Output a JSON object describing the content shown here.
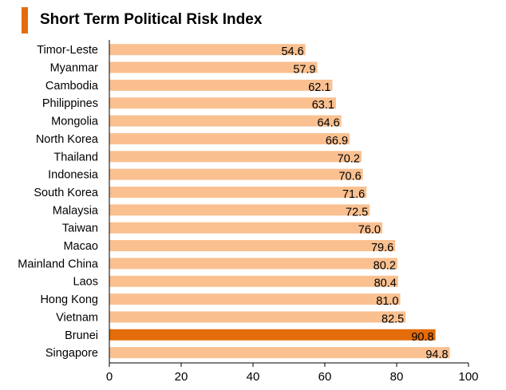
{
  "chart_data": {
    "type": "bar",
    "orientation": "horizontal",
    "title": "Short Term Political Risk Index",
    "categories": [
      "Timor-Leste",
      "Myanmar",
      "Cambodia",
      "Philippines",
      "Mongolia",
      "North Korea",
      "Thailand",
      "Indonesia",
      "South Korea",
      "Malaysia",
      "Taiwan",
      "Macao",
      "Mainland China",
      "Laos",
      "Hong Kong",
      "Vietnam",
      "Brunei",
      "Singapore"
    ],
    "values": [
      54.6,
      57.9,
      62.1,
      63.1,
      64.6,
      66.9,
      70.2,
      70.6,
      71.6,
      72.5,
      76.0,
      79.6,
      80.2,
      80.4,
      81.0,
      82.5,
      90.8,
      94.8
    ],
    "value_labels": [
      "54.6",
      "57.9",
      "62.1",
      "63.1",
      "64.6",
      "66.9",
      "70.2",
      "70.6",
      "71.6",
      "72.5",
      "76.0",
      "79.6",
      "80.2",
      "80.4",
      "81.0",
      "82.5",
      "90.8",
      "94.8"
    ],
    "highlight": "Brunei",
    "xlim": [
      0,
      100
    ],
    "xticks": [
      "0",
      "20",
      "40",
      "60",
      "80",
      "100"
    ],
    "xlabel": "",
    "ylabel": "",
    "grid": false,
    "colors": {
      "bar": "#FAC090",
      "highlight": "#E46C0A",
      "title_accent": "#E46C0A"
    }
  }
}
